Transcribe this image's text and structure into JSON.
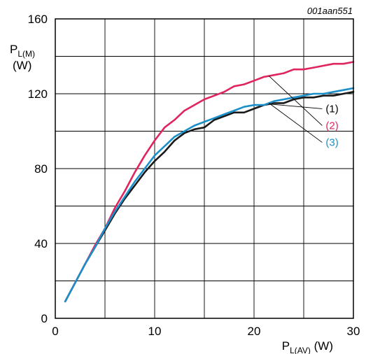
{
  "chart_data": {
    "type": "line",
    "figure_id": "001aan551",
    "xlabel": {
      "main": "P",
      "sub": "L(AV)",
      "unit": " (W)"
    },
    "ylabel": {
      "main": "P",
      "sub": "L(M)",
      "unit": "(W)"
    },
    "xlim": [
      0,
      30
    ],
    "ylim": [
      0,
      160
    ],
    "x_major_ticks": [
      0,
      10,
      20,
      30
    ],
    "x_minor_ticks": [
      5,
      15,
      25
    ],
    "y_major_ticks": [
      0,
      40,
      80,
      120,
      160
    ],
    "y_minor_ticks": [
      20,
      60,
      100,
      140
    ],
    "grid": true,
    "series": [
      {
        "name": "(1)",
        "color": "#1a1a1a",
        "x": [
          1,
          2,
          3,
          4,
          5,
          6,
          7,
          8,
          9,
          10,
          11,
          12,
          13,
          14,
          15,
          16,
          17,
          18,
          19,
          20,
          21,
          22,
          23,
          24,
          25,
          26,
          27,
          28,
          29,
          30
        ],
        "y": [
          9,
          19,
          29,
          38,
          47,
          56,
          64,
          71,
          78,
          84,
          89,
          95,
          99,
          101,
          102,
          106,
          108,
          110,
          110,
          112,
          114,
          115,
          115,
          117,
          118,
          118,
          119,
          119,
          120,
          121
        ]
      },
      {
        "name": "(2)",
        "color": "#e0245e",
        "x": [
          1,
          2,
          3,
          4,
          5,
          6,
          7,
          8,
          9,
          10,
          11,
          12,
          13,
          14,
          15,
          16,
          17,
          18,
          19,
          20,
          21,
          22,
          23,
          24,
          25,
          26,
          27,
          28,
          29,
          30
        ],
        "y": [
          9,
          19,
          29,
          39,
          48,
          59,
          68,
          78,
          87,
          95,
          102,
          106,
          111,
          114,
          117,
          119,
          121,
          124,
          125,
          127,
          129,
          130,
          131,
          133,
          133,
          134,
          135,
          136,
          136,
          137
        ]
      },
      {
        "name": "(3)",
        "color": "#1b8fc9",
        "x": [
          1,
          2,
          3,
          4,
          5,
          6,
          7,
          8,
          9,
          10,
          11,
          12,
          13,
          14,
          15,
          16,
          17,
          18,
          19,
          20,
          21,
          22,
          23,
          24,
          25,
          26,
          27,
          28,
          29,
          30
        ],
        "y": [
          9,
          19,
          29,
          38,
          48,
          57,
          65,
          73,
          80,
          87,
          92,
          97,
          100,
          103,
          105,
          107,
          109,
          111,
          113,
          114,
          114,
          116,
          117,
          118,
          119,
          120,
          120,
          121,
          122,
          123
        ]
      }
    ],
    "annotations": [
      {
        "label": "(1)",
        "series": 0,
        "point_x": 21.5,
        "label_x": 27,
        "label_y": 112
      },
      {
        "label": "(2)",
        "series": 1,
        "point_x": 21.5,
        "label_x": 27,
        "label_y": 103
      },
      {
        "label": "(3)",
        "series": 2,
        "point_x": 21.5,
        "label_x": 27,
        "label_y": 94
      }
    ]
  }
}
